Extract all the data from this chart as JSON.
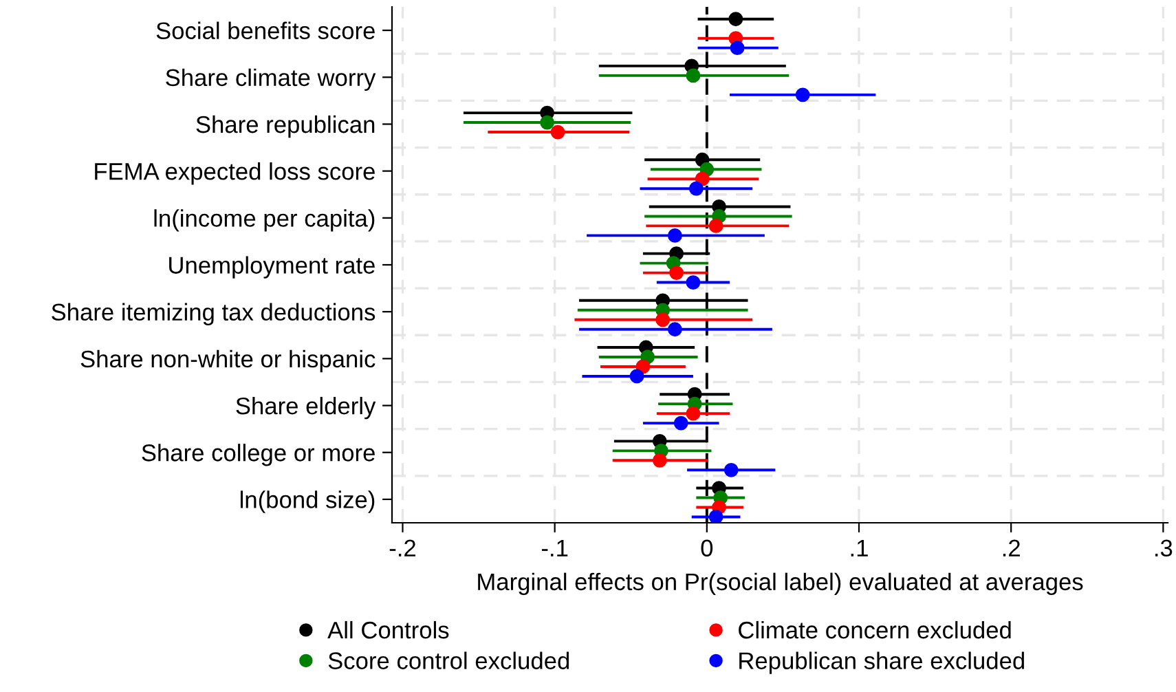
{
  "chart_data": {
    "type": "scatter",
    "orientation": "horizontal",
    "xlabel": "Marginal effects on Pr(social label) evaluated at averages",
    "categories": [
      "Social benefits score",
      "Share climate worry",
      "Share republican",
      "FEMA expected loss score",
      "ln(income per capita)",
      "Unemployment rate",
      "Share itemizing tax deductions",
      "Share non-white or hispanic",
      "Share elderly",
      "Share college or more",
      "ln(bond size)"
    ],
    "xlim": [
      -0.207,
      0.303
    ],
    "xticks": [
      {
        "value": -0.2,
        "label": "-.2"
      },
      {
        "value": -0.1,
        "label": "-.1"
      },
      0,
      {
        "value": 0.1,
        "label": ".1"
      },
      {
        "value": 0.2,
        "label": ".2"
      },
      {
        "value": 0.3,
        "label": ".3"
      }
    ],
    "grid": true,
    "legend": "bottom",
    "marker": "circle",
    "ref_lines": [
      {
        "axis": "x",
        "value": 0,
        "color": "#000000",
        "line_style": "dashed"
      }
    ],
    "series": [
      {
        "name": "All Controls",
        "color": "#000000",
        "values": [
          0.019,
          -0.01,
          -0.105,
          -0.003,
          0.008,
          -0.02,
          -0.029,
          -0.04,
          -0.008,
          -0.031,
          0.008
        ],
        "errors": [
          [
            -0.006,
            0.044
          ],
          [
            -0.071,
            0.052
          ],
          [
            -0.16,
            -0.049
          ],
          [
            -0.041,
            0.035
          ],
          [
            -0.038,
            0.055
          ],
          [
            -0.042,
            0.002
          ],
          [
            -0.084,
            0.027
          ],
          [
            -0.072,
            -0.008
          ],
          [
            -0.031,
            0.015
          ],
          [
            -0.061,
            0.0
          ],
          [
            -0.007,
            0.024
          ]
        ]
      },
      {
        "name": "Score control excluded",
        "color": "#008000",
        "values": [
          null,
          -0.009,
          -0.105,
          0.0,
          0.008,
          -0.022,
          -0.029,
          -0.039,
          -0.008,
          -0.03,
          0.009
        ],
        "errors": [
          null,
          [
            -0.071,
            0.054
          ],
          [
            -0.16,
            -0.05
          ],
          [
            -0.037,
            0.036
          ],
          [
            -0.041,
            0.056
          ],
          [
            -0.044,
            0.001
          ],
          [
            -0.085,
            0.027
          ],
          [
            -0.071,
            -0.006
          ],
          [
            -0.032,
            0.017
          ],
          [
            -0.062,
            0.003
          ],
          [
            -0.007,
            0.025
          ]
        ]
      },
      {
        "name": "Climate concern excluded",
        "color": "#ff0000",
        "values": [
          0.019,
          null,
          -0.098,
          -0.003,
          0.006,
          -0.02,
          -0.029,
          -0.042,
          -0.009,
          -0.031,
          0.008
        ],
        "errors": [
          [
            -0.006,
            0.044
          ],
          null,
          [
            -0.144,
            -0.051
          ],
          [
            -0.039,
            0.034
          ],
          [
            -0.04,
            0.054
          ],
          [
            -0.042,
            0.001
          ],
          [
            -0.087,
            0.03
          ],
          [
            -0.07,
            -0.014
          ],
          [
            -0.033,
            0.015
          ],
          [
            -0.062,
            0.001
          ],
          [
            -0.007,
            0.024
          ]
        ]
      },
      {
        "name": "Republican share excluded",
        "color": "#0000ff",
        "values": [
          0.02,
          0.063,
          null,
          -0.007,
          -0.021,
          -0.009,
          -0.021,
          -0.046,
          -0.017,
          0.016,
          0.006
        ],
        "errors": [
          [
            -0.006,
            0.047
          ],
          [
            0.015,
            0.111
          ],
          null,
          [
            -0.044,
            0.03
          ],
          [
            -0.079,
            0.038
          ],
          [
            -0.033,
            0.015
          ],
          [
            -0.084,
            0.043
          ],
          [
            -0.082,
            -0.009
          ],
          [
            -0.042,
            0.008
          ],
          [
            -0.013,
            0.045
          ],
          [
            -0.01,
            0.022
          ]
        ]
      }
    ]
  }
}
